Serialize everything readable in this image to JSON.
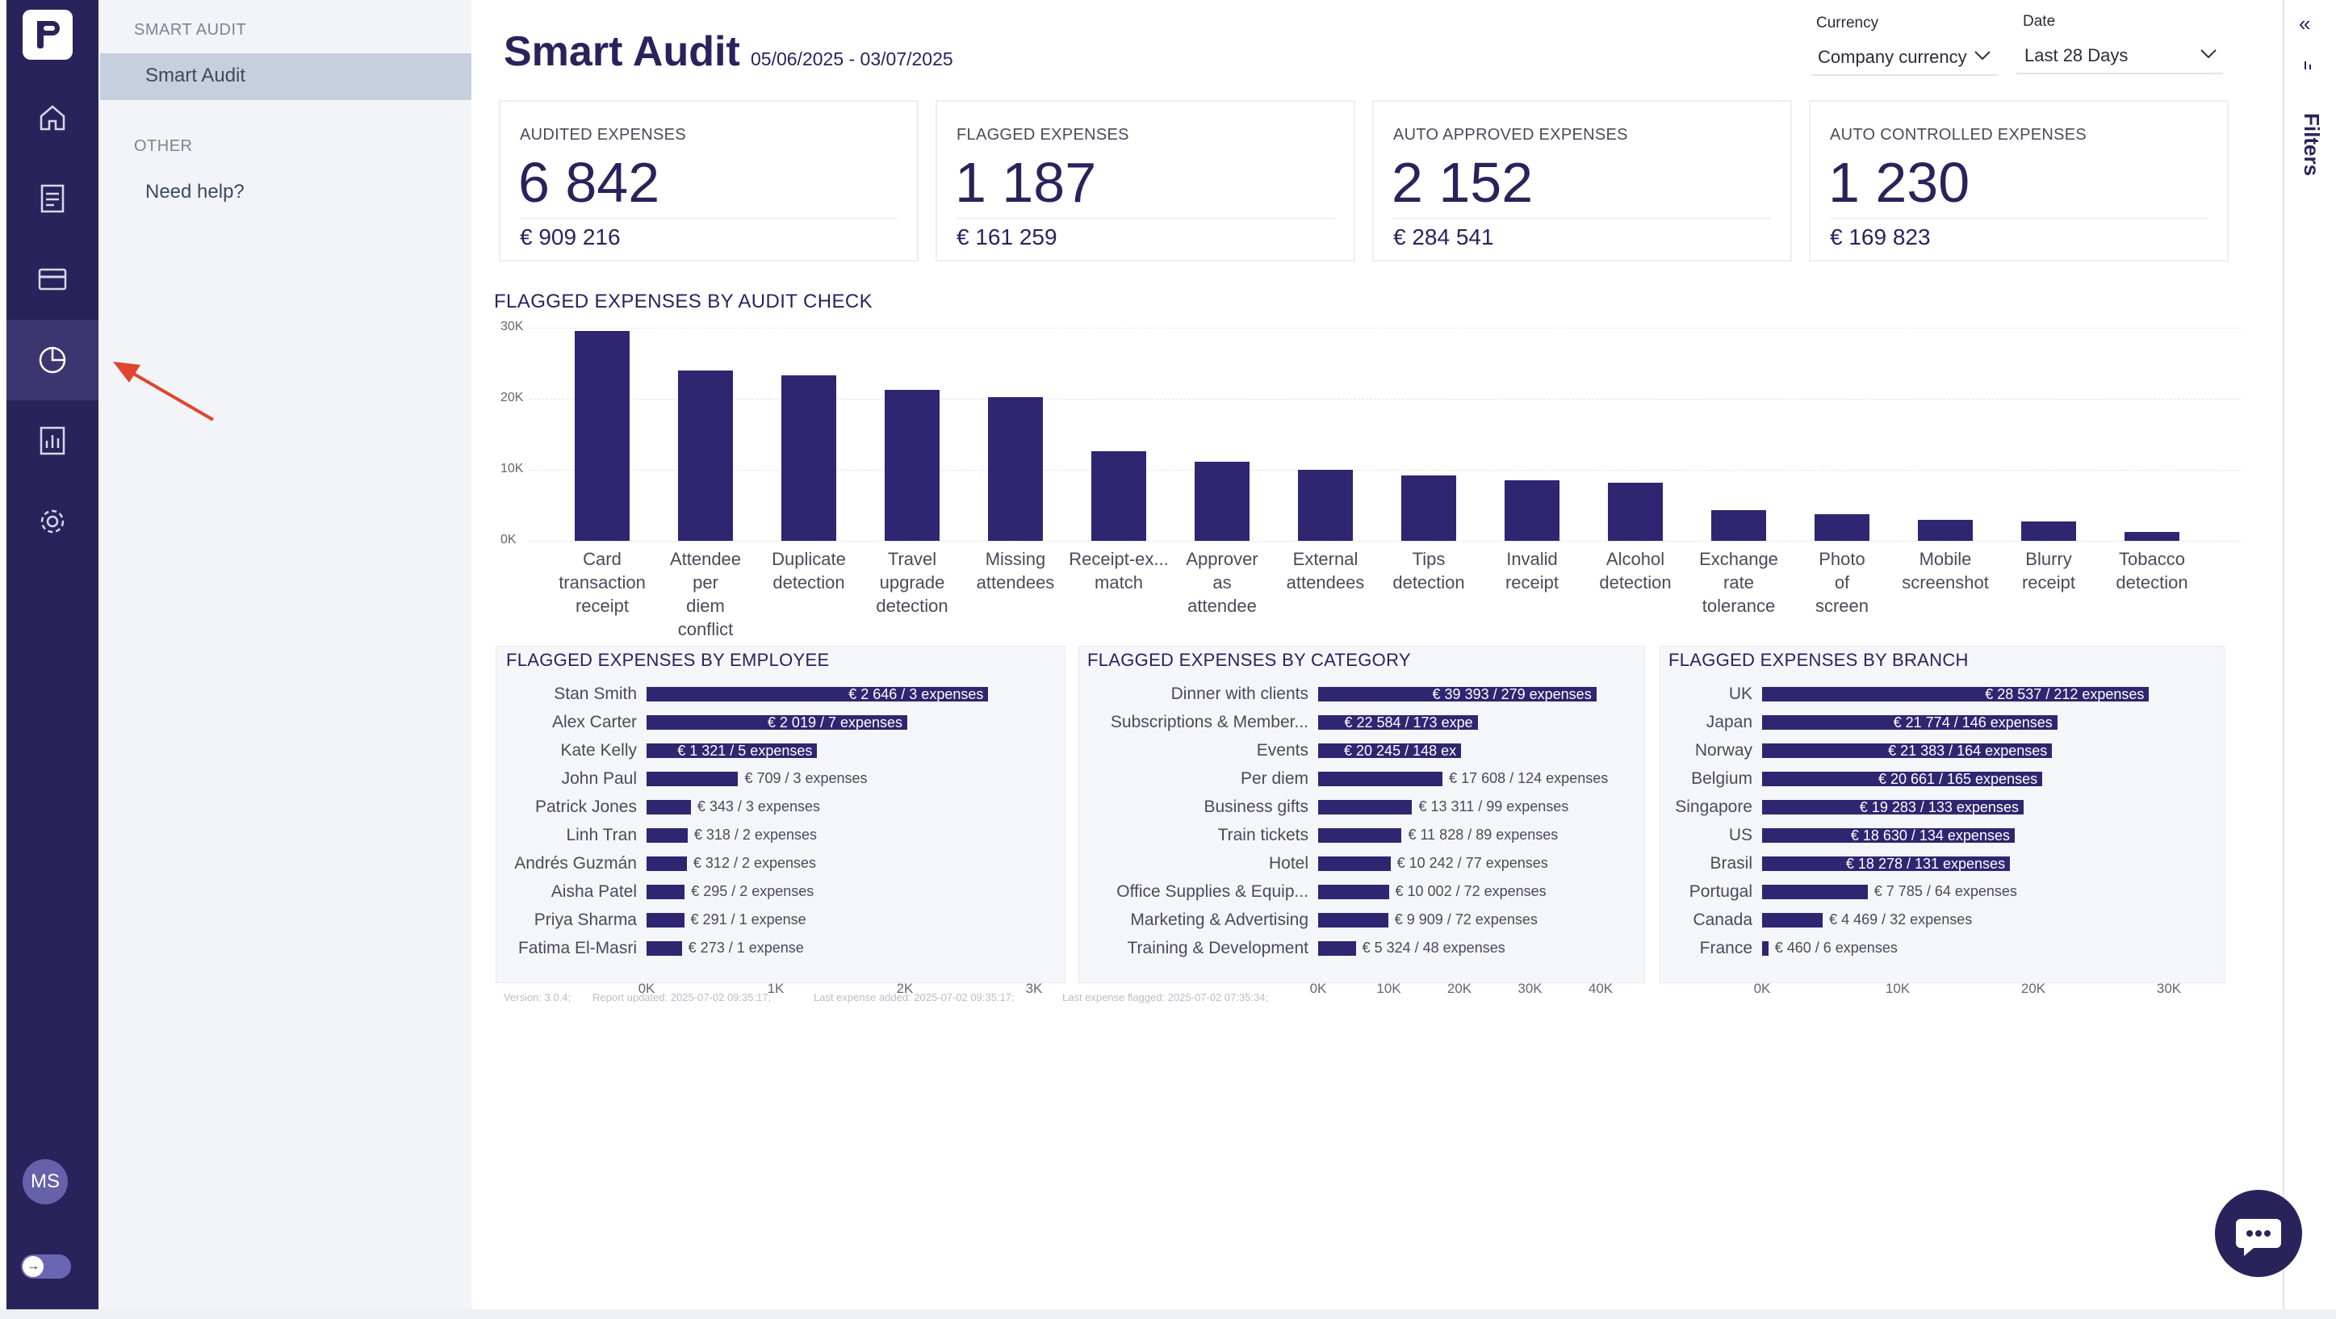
{
  "colors": {
    "brand": "#29235c",
    "bar": "#2e2670",
    "accent_arrow": "#e0452f"
  },
  "sidebar": {
    "icons": [
      "home-icon",
      "expenses-icon",
      "card-icon",
      "audit-pie-icon",
      "report-icon",
      "settings-icon"
    ],
    "avatar_initials": "MS"
  },
  "panel": {
    "section1": "SMART AUDIT",
    "item1": "Smart Audit",
    "section2": "OTHER",
    "item2": "Need help?"
  },
  "header": {
    "title": "Smart Audit",
    "date_range": "05/06/2025 - 03/07/2025",
    "currency_label": "Currency",
    "currency_value": "Company currency",
    "date_label": "Date",
    "date_value": "Last 28 Days"
  },
  "kpis": [
    {
      "label": "AUDITED EXPENSES",
      "value": "6 842",
      "amount": "€ 909 216"
    },
    {
      "label": "FLAGGED EXPENSES",
      "value": "1 187",
      "amount": "€ 161 259"
    },
    {
      "label": "AUTO APPROVED EXPENSES",
      "value": "2 152",
      "amount": "€ 284 541"
    },
    {
      "label": "AUTO CONTROLLED EXPENSES",
      "value": "1 230",
      "amount": "€ 169 823"
    }
  ],
  "chart_data": [
    {
      "type": "bar",
      "title": "FLAGGED EXPENSES BY AUDIT CHECK",
      "categories": [
        "Card transaction receipt",
        "Attendee per diem conflict",
        "Duplicate detection",
        "Travel upgrade detection",
        "Missing attendees",
        "Receipt-ex... match",
        "Approver as attendee",
        "External attendees",
        "Tips detection",
        "Invalid receipt",
        "Alcohol detection",
        "Exchange rate tolerance",
        "Photo of screen",
        "Mobile screenshot",
        "Blurry receipt",
        "Tobacco detection"
      ],
      "values": [
        29500,
        24000,
        23300,
        21200,
        20200,
        12600,
        11100,
        10000,
        9200,
        8500,
        8200,
        4300,
        3700,
        3000,
        2700,
        1200
      ],
      "yticks": [
        "0K",
        "10K",
        "20K",
        "30K"
      ],
      "ylim": [
        0,
        30000
      ]
    },
    {
      "type": "bar",
      "orientation": "horizontal",
      "title": "FLAGGED EXPENSES BY EMPLOYEE",
      "categories": [
        "Stan Smith",
        "Alex Carter",
        "Kate Kelly",
        "John Paul",
        "Patrick Jones",
        "Linh Tran",
        "Andrés Guzmán",
        "Aisha Patel",
        "Priya Sharma",
        "Fatima El-Masri"
      ],
      "values": [
        2646,
        2019,
        1321,
        709,
        343,
        318,
        312,
        295,
        291,
        273
      ],
      "labels": [
        "€ 2 646 / 3 expenses",
        "€ 2 019 / 7 expenses",
        "€ 1 321 / 5 expenses",
        "€ 709 / 3 expenses",
        "€ 343 / 3 expenses",
        "€ 318 / 2 expenses",
        "€ 312 / 2 expenses",
        "€ 295 / 2 expenses",
        "€ 291 / 1 expense",
        "€ 273 / 1 expense"
      ],
      "xticks": [
        "0K",
        "1K",
        "2K",
        "3K"
      ],
      "xlim": [
        0,
        3000
      ]
    },
    {
      "type": "bar",
      "orientation": "horizontal",
      "title": "FLAGGED EXPENSES BY CATEGORY",
      "categories": [
        "Dinner with clients",
        "Subscriptions & Member...",
        "Events",
        "Per diem",
        "Business gifts",
        "Train tickets",
        "Hotel",
        "Office Supplies & Equip...",
        "Marketing & Advertising",
        "Training & Development"
      ],
      "values": [
        39393,
        22584,
        20245,
        17608,
        13311,
        11828,
        10242,
        10002,
        9909,
        5324
      ],
      "labels": [
        "€ 39 393 / 279 expenses",
        "€ 22 584 / 173 expe",
        "€ 20 245 / 148 ex",
        "€ 17 608 / 124 expenses",
        "€ 13 311 / 99 expenses",
        "€ 11 828 / 89 expenses",
        "€ 10 242 / 77 expenses",
        "€ 10 002 / 72 expenses",
        "€ 9 909 / 72 expenses",
        "€ 5 324 / 48 expenses"
      ],
      "xticks": [
        "0K",
        "10K",
        "20K",
        "30K",
        "40K"
      ],
      "xlim": [
        0,
        40000
      ]
    },
    {
      "type": "bar",
      "orientation": "horizontal",
      "title": "FLAGGED EXPENSES BY BRANCH",
      "categories": [
        "UK",
        "Japan",
        "Norway",
        "Belgium",
        "Singapore",
        "US",
        "Brasil",
        "Portugal",
        "Canada",
        "France"
      ],
      "values": [
        28537,
        21774,
        21383,
        20661,
        19283,
        18630,
        18278,
        7785,
        4469,
        460
      ],
      "labels": [
        "€ 28 537 / 212 expenses",
        "€ 21 774 / 146 expenses",
        "€ 21 383 / 164 expenses",
        "€ 20 661 / 165 expenses",
        "€ 19 283 / 133 expenses",
        "€ 18 630 / 134 expenses",
        "€ 18 278 / 131 expenses",
        "€ 7 785 / 64 expenses",
        "€ 4 469 / 32 expenses",
        "€ 460 / 6 expenses"
      ],
      "xticks": [
        "0K",
        "10K",
        "20K",
        "30K"
      ],
      "xlim": [
        0,
        30000
      ]
    }
  ],
  "footer": {
    "version": "Version: 3.0.4;",
    "updated": "Report updated: 2025-07-02 09:35:17;",
    "added": "Last expense added: 2025-07-02 09:35:17;",
    "flagged": "Last expense flagged: 2025-07-02 07:35:34;"
  },
  "right": {
    "filters_label": "Filters"
  }
}
